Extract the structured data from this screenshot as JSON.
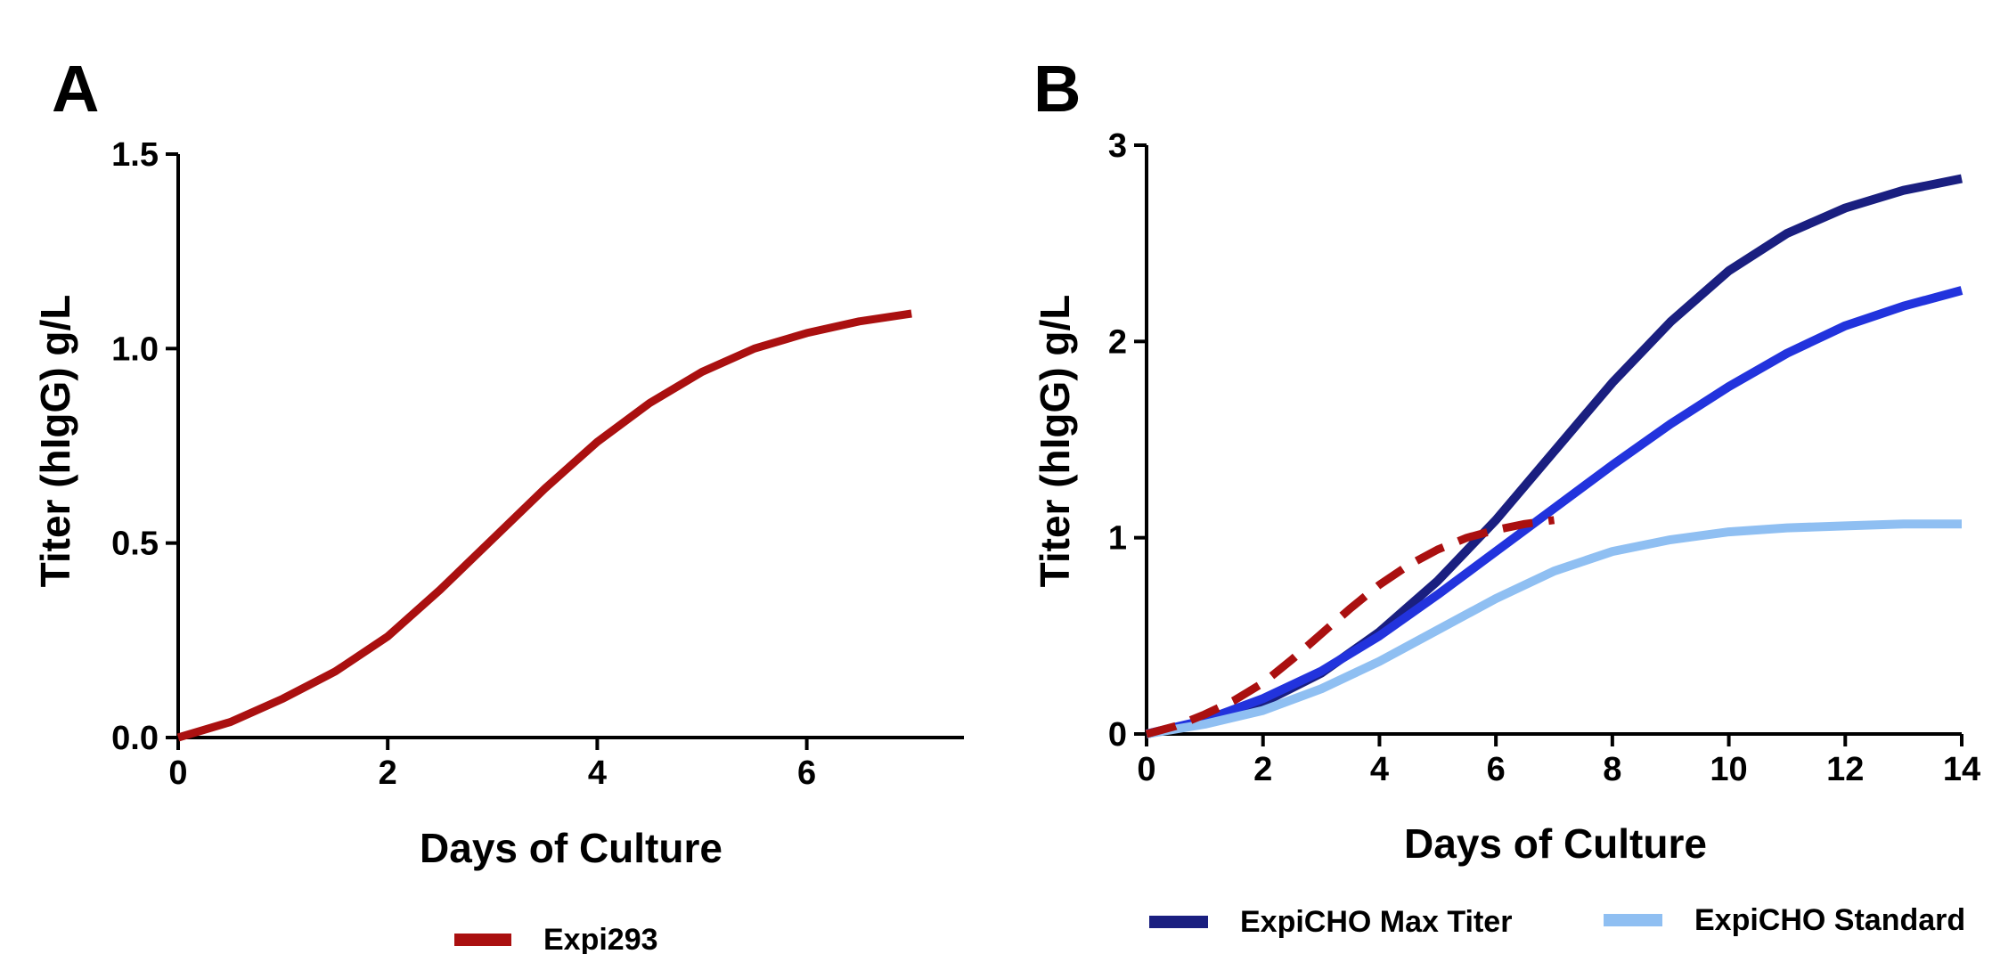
{
  "chart_data": [
    {
      "panel": "A",
      "type": "line",
      "xlabel": "Days of Culture",
      "ylabel": "Titer (hIgG) g/L",
      "xlim": [
        0,
        7.5
      ],
      "ylim": [
        0,
        1.5
      ],
      "xticks": [
        0,
        2,
        4,
        6
      ],
      "xtick_labels": [
        "0",
        "2",
        "4",
        "6"
      ],
      "yticks": [
        0,
        0.5,
        1.0,
        1.5
      ],
      "ytick_labels": [
        "0.0",
        "0.5",
        "1.0",
        "1.5"
      ],
      "grid": false,
      "legend_position": "bottom",
      "series": [
        {
          "name": "Expi293",
          "color": "#aa1010",
          "style": "solid",
          "x": [
            0,
            0.5,
            1,
            1.5,
            2,
            2.5,
            3,
            3.5,
            4,
            4.5,
            5,
            5.5,
            6,
            6.5,
            7
          ],
          "y": [
            0,
            0.04,
            0.1,
            0.17,
            0.26,
            0.38,
            0.51,
            0.64,
            0.76,
            0.86,
            0.94,
            1.0,
            1.04,
            1.07,
            1.09
          ]
        }
      ]
    },
    {
      "panel": "B",
      "type": "line",
      "xlabel": "Days of Culture",
      "ylabel": "Titer (hIgG) g/L",
      "xlim": [
        0,
        14
      ],
      "ylim": [
        0,
        3
      ],
      "xticks": [
        0,
        2,
        4,
        6,
        8,
        10,
        12,
        14
      ],
      "xtick_labels": [
        "0",
        "2",
        "4",
        "6",
        "8",
        "10",
        "12",
        "14"
      ],
      "yticks": [
        0,
        1,
        2,
        3
      ],
      "ytick_labels": [
        "0",
        "1",
        "2",
        "3"
      ],
      "grid": false,
      "legend_position": "bottom",
      "series": [
        {
          "name": "ExpiCHO Max Titer",
          "color": "#1a1f80",
          "style": "solid",
          "x": [
            0,
            1,
            2,
            3,
            4,
            5,
            6,
            7,
            8,
            9,
            10,
            11,
            12,
            13,
            14
          ],
          "y": [
            0,
            0.06,
            0.16,
            0.31,
            0.52,
            0.78,
            1.09,
            1.44,
            1.79,
            2.1,
            2.36,
            2.55,
            2.68,
            2.77,
            2.83
          ]
        },
        {
          "name": "",
          "color": "#2233dd",
          "style": "solid",
          "x": [
            0,
            1,
            2,
            3,
            4,
            5,
            6,
            7,
            8,
            9,
            10,
            11,
            12,
            13,
            14
          ],
          "y": [
            0,
            0.07,
            0.18,
            0.32,
            0.5,
            0.71,
            0.93,
            1.15,
            1.37,
            1.58,
            1.77,
            1.94,
            2.08,
            2.18,
            2.26
          ]
        },
        {
          "name": "ExpiCHO Standard",
          "color": "#8fbff2",
          "style": "solid",
          "x": [
            0,
            1,
            2,
            3,
            4,
            5,
            6,
            7,
            8,
            9,
            10,
            11,
            12,
            13,
            14
          ],
          "y": [
            0,
            0.05,
            0.12,
            0.23,
            0.37,
            0.53,
            0.69,
            0.83,
            0.93,
            0.99,
            1.03,
            1.05,
            1.06,
            1.07,
            1.07
          ]
        },
        {
          "name": "",
          "color": "#aa1010",
          "style": "dashed",
          "x": [
            0,
            0.5,
            1,
            1.5,
            2,
            2.5,
            3,
            3.5,
            4,
            4.5,
            5,
            5.5,
            6,
            6.5,
            7
          ],
          "y": [
            0,
            0.04,
            0.1,
            0.17,
            0.26,
            0.38,
            0.51,
            0.64,
            0.76,
            0.86,
            0.94,
            1.0,
            1.04,
            1.07,
            1.09
          ]
        }
      ]
    }
  ]
}
